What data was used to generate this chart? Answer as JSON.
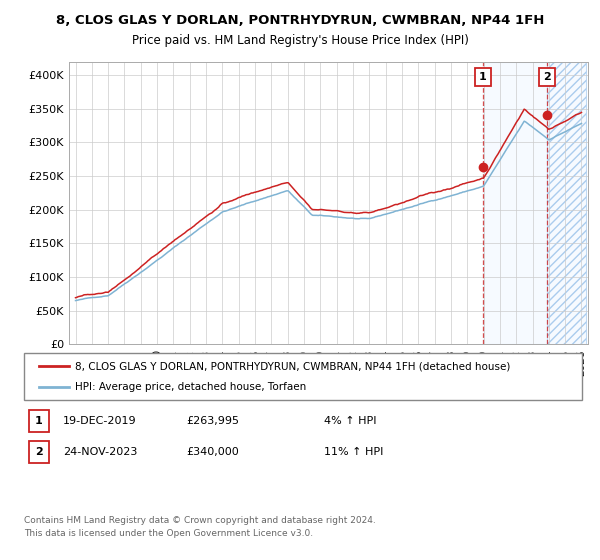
{
  "title": "8, CLOS GLAS Y DORLAN, PONTRHYDYRUN, CWMBRAN, NP44 1FH",
  "subtitle": "Price paid vs. HM Land Registry's House Price Index (HPI)",
  "ylim": [
    0,
    420000
  ],
  "yticks": [
    0,
    50000,
    100000,
    150000,
    200000,
    250000,
    300000,
    350000,
    400000
  ],
  "ytick_labels": [
    "£0",
    "£50K",
    "£100K",
    "£150K",
    "£200K",
    "£250K",
    "£300K",
    "£350K",
    "£400K"
  ],
  "hpi_color": "#7fb3d3",
  "price_color": "#cc2222",
  "sale1_date": 2019.97,
  "sale1_price": 263995,
  "sale2_date": 2023.9,
  "sale2_price": 340000,
  "annotation1": "1",
  "annotation2": "2",
  "legend_price_label": "8, CLOS GLAS Y DORLAN, PONTRHYDYRUN, CWMBRAN, NP44 1FH (detached house)",
  "legend_hpi_label": "HPI: Average price, detached house, Torfaen",
  "table_row1": [
    "1",
    "19-DEC-2019",
    "£263,995",
    "4% ↑ HPI"
  ],
  "table_row2": [
    "2",
    "24-NOV-2023",
    "£340,000",
    "11% ↑ HPI"
  ],
  "footer": "Contains HM Land Registry data © Crown copyright and database right 2024.\nThis data is licensed under the Open Government Licence v3.0.",
  "background_color": "#ffffff",
  "grid_color": "#cccccc",
  "shade_color": "#ddeeff"
}
